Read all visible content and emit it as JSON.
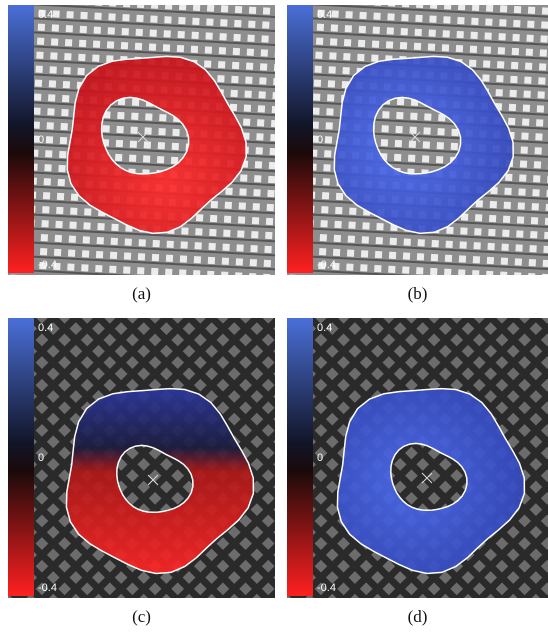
{
  "panels": [
    {
      "label": "(a)",
      "colorbar": {
        "top": "0.4",
        "middle": "0",
        "bottom": "-0.4"
      }
    },
    {
      "label": "(b)",
      "colorbar": {
        "top": "0.4",
        "middle": "0",
        "bottom": "-0.4"
      }
    },
    {
      "label": "(c)",
      "colorbar": {
        "top": "0.4",
        "middle": "0",
        "bottom": "-0.4"
      }
    },
    {
      "label": "(d)",
      "colorbar": {
        "top": "0.4",
        "middle": "0",
        "bottom": "-0.4"
      }
    }
  ]
}
